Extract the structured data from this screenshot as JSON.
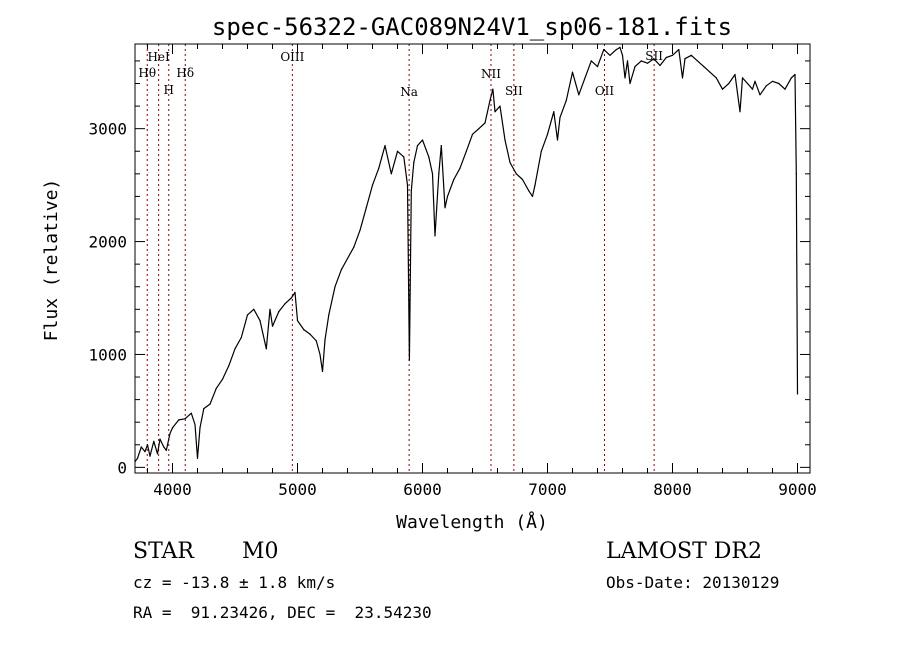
{
  "chart_data": {
    "type": "line",
    "title": "spec-56322-GAC089N24V1_sp06-181.fits",
    "xlabel": "Wavelength (Å)",
    "ylabel": "Flux (relative)",
    "xlim": [
      3700,
      9100
    ],
    "ylim": [
      -50,
      3750
    ],
    "x_ticks": [
      4000,
      5000,
      6000,
      7000,
      8000,
      9000
    ],
    "x_tick_labels": [
      "4000",
      "5000",
      "6000",
      "7000",
      "8000",
      "9000"
    ],
    "y_ticks": [
      0,
      1000,
      2000,
      3000
    ],
    "y_tick_labels": [
      "0",
      "1000",
      "2000",
      "3000"
    ],
    "grid": false,
    "line_color": "#000000",
    "marker_color": "#8b0000",
    "series": [
      {
        "x": [
          3700,
          3720,
          3750,
          3780,
          3800,
          3820,
          3850,
          3880,
          3900,
          3930,
          3950,
          3980,
          4000,
          4050,
          4100,
          4150,
          4180,
          4200,
          4220,
          4250,
          4300,
          4350,
          4400,
          4450,
          4500,
          4550,
          4600,
          4650,
          4700,
          4750,
          4780,
          4800,
          4850,
          4900,
          4950,
          4980,
          5000,
          5050,
          5100,
          5150,
          5180,
          5200,
          5220,
          5250,
          5300,
          5350,
          5400,
          5450,
          5500,
          5550,
          5600,
          5650,
          5700,
          5750,
          5800,
          5850,
          5880,
          5895,
          5910,
          5930,
          5960,
          6000,
          6050,
          6080,
          6100,
          6130,
          6150,
          6180,
          6200,
          6250,
          6300,
          6350,
          6400,
          6450,
          6500,
          6540,
          6563,
          6580,
          6620,
          6660,
          6700,
          6750,
          6800,
          6850,
          6880,
          6900,
          6950,
          7000,
          7050,
          7080,
          7100,
          7150,
          7200,
          7250,
          7300,
          7350,
          7400,
          7450,
          7500,
          7550,
          7580,
          7600,
          7620,
          7640,
          7660,
          7700,
          7750,
          7800,
          7850,
          7900,
          7950,
          8000,
          8050,
          8080,
          8100,
          8150,
          8200,
          8250,
          8300,
          8350,
          8400,
          8450,
          8500,
          8540,
          8560,
          8600,
          8640,
          8660,
          8700,
          8750,
          8800,
          8850,
          8900,
          8950,
          8980,
          8990,
          9000
        ],
        "y": [
          50,
          80,
          180,
          140,
          200,
          100,
          230,
          120,
          250,
          180,
          150,
          300,
          350,
          420,
          430,
          480,
          380,
          80,
          350,
          520,
          560,
          700,
          780,
          900,
          1050,
          1150,
          1350,
          1400,
          1300,
          1050,
          1400,
          1250,
          1380,
          1450,
          1500,
          1550,
          1300,
          1220,
          1180,
          1120,
          1000,
          850,
          1130,
          1350,
          1600,
          1750,
          1850,
          1950,
          2100,
          2300,
          2500,
          2650,
          2850,
          2600,
          2800,
          2750,
          2500,
          950,
          2450,
          2700,
          2850,
          2900,
          2750,
          2600,
          2050,
          2600,
          2850,
          2300,
          2400,
          2550,
          2650,
          2800,
          2950,
          3000,
          3050,
          3250,
          3350,
          3150,
          3200,
          2900,
          2700,
          2600,
          2550,
          2450,
          2400,
          2500,
          2800,
          2950,
          3150,
          2900,
          3100,
          3250,
          3500,
          3300,
          3450,
          3600,
          3550,
          3700,
          3650,
          3700,
          3720,
          3650,
          3450,
          3600,
          3400,
          3550,
          3600,
          3580,
          3620,
          3560,
          3630,
          3650,
          3700,
          3450,
          3620,
          3650,
          3600,
          3550,
          3500,
          3450,
          3350,
          3400,
          3480,
          3150,
          3450,
          3400,
          3350,
          3420,
          3300,
          3380,
          3420,
          3400,
          3350,
          3450,
          3480,
          2600,
          650
        ]
      }
    ],
    "line_markers": [
      {
        "label": "Hθ",
        "x": 3798
      },
      {
        "label": "HeI",
        "x": 3889
      },
      {
        "label": "H",
        "x": 3970
      },
      {
        "label": "Hδ",
        "x": 4102
      },
      {
        "label": "OIII",
        "x": 4959
      },
      {
        "label": "Na",
        "x": 5893
      },
      {
        "label": "NII",
        "x": 6548
      },
      {
        "label": "SII",
        "x": 6731
      },
      {
        "label": "OII",
        "x": 7456
      },
      {
        "label": "SII",
        "x": 7853
      }
    ]
  },
  "info": {
    "object_class": "STAR",
    "subclass": "M0",
    "survey": "LAMOST DR2",
    "redshift": "cz = -13.8 ± 1.8 km/s",
    "obs_date": "Obs-Date: 20130129",
    "coords": "RA =  91.23426, DEC =  23.54230"
  }
}
